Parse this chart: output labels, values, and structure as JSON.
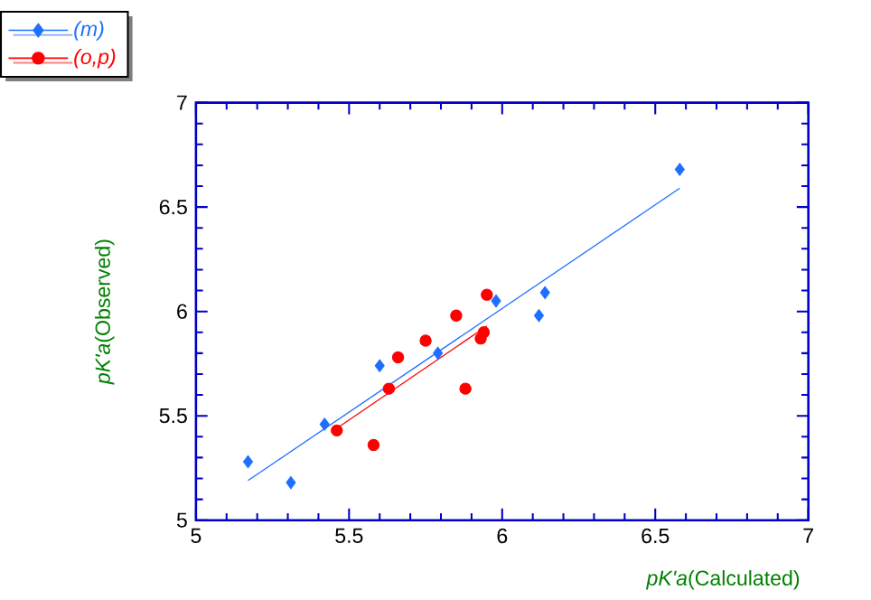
{
  "chart_data": {
    "type": "scatter",
    "xlabel": "*pK'a*(Calculated)",
    "ylabel": "*pK'a*(Observed)",
    "xlim": [
      5,
      7
    ],
    "ylim": [
      5,
      7
    ],
    "xticks": [
      5,
      5.5,
      6,
      6.5,
      7
    ],
    "yticks": [
      5,
      5.5,
      6,
      6.5,
      7
    ],
    "grid": false,
    "legend": "top left",
    "series": [
      {
        "name": "(m)",
        "color": "#1f6fff",
        "marker": "diamond",
        "x": [
          5.17,
          5.31,
          5.42,
          5.6,
          5.79,
          5.98,
          6.12,
          6.14,
          6.58
        ],
        "values": [
          5.28,
          5.18,
          5.46,
          5.74,
          5.8,
          6.05,
          5.98,
          6.09,
          6.68
        ]
      },
      {
        "name": "(o,p)",
        "color": "#ff0000",
        "marker": "circle",
        "x": [
          5.46,
          5.58,
          5.63,
          5.66,
          5.75,
          5.85,
          5.88,
          5.93,
          5.94,
          5.95
        ],
        "values": [
          5.43,
          5.36,
          5.63,
          5.78,
          5.86,
          5.98,
          5.63,
          5.87,
          5.9,
          6.08
        ]
      },
      {
        "type": "line",
        "color": "#1f6fff",
        "marker": "none",
        "x": [
          5.17,
          6.58
        ],
        "values": [
          5.19,
          6.59
        ]
      },
      {
        "type": "line",
        "color": "#ff0000",
        "marker": "none",
        "x": [
          5.46,
          5.95
        ],
        "values": [
          5.44,
          5.93
        ]
      }
    ]
  }
}
